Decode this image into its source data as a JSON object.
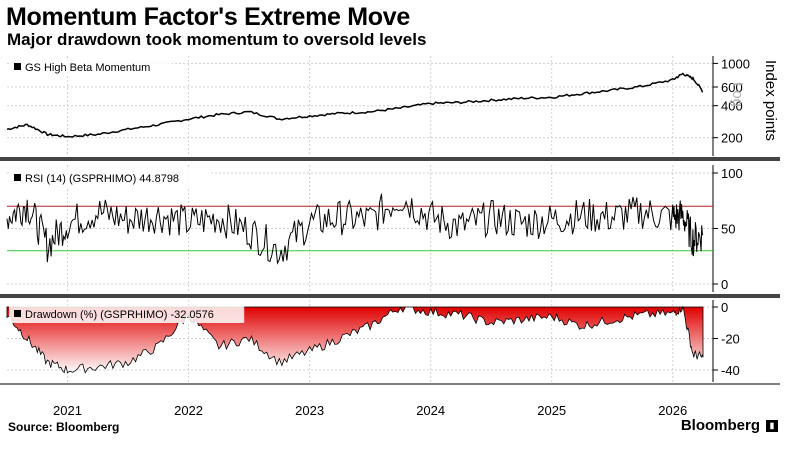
{
  "header": {
    "title": "Momentum Factor's Extreme Move",
    "subtitle": "Major drawdown took momentum to oversold levels"
  },
  "footer": {
    "source": "Source: Bloomberg",
    "brand": "Bloomberg"
  },
  "colors": {
    "price_line": "#000000",
    "rsi_line": "#000000",
    "rsi_upper": "#b22222",
    "rsi_lower": "#33cc33",
    "drawdown_fill": "#e00000",
    "separator": "#444444",
    "grid": "#d0d0d0"
  },
  "chart_data": [
    {
      "type": "line",
      "panel": "price",
      "legend": "GS High Beta Momentum",
      "ylabel": "Index points",
      "scale_badge": "Log",
      "yscale": "log",
      "ylim": [
        150,
        1100
      ],
      "yticks": [
        "1000",
        "600",
        "400",
        "200"
      ],
      "ytick_values": [
        1000,
        600,
        400,
        200
      ],
      "x": [
        "2020-07",
        "2020-09",
        "2020-11",
        "2021-01",
        "2021-04",
        "2021-07",
        "2021-10",
        "2022-01",
        "2022-04",
        "2022-07",
        "2022-10",
        "2023-01",
        "2023-04",
        "2023-07",
        "2023-10",
        "2024-01",
        "2024-04",
        "2024-07",
        "2024-10",
        "2025-01",
        "2025-04",
        "2025-07",
        "2025-10",
        "2026-01",
        "2026-02",
        "2026-03",
        "2026-04"
      ],
      "values": [
        240,
        265,
        215,
        205,
        215,
        240,
        265,
        300,
        330,
        350,
        300,
        320,
        340,
        350,
        380,
        420,
        430,
        450,
        470,
        480,
        520,
        560,
        610,
        700,
        800,
        720,
        540
      ],
      "grid": true
    },
    {
      "type": "line",
      "panel": "rsi",
      "legend": "RSI (14) (GSPRHIMO) 44.8798",
      "ylim": [
        0,
        100
      ],
      "yticks": [
        "100",
        "50",
        "0"
      ],
      "ytick_values": [
        100,
        50,
        0
      ],
      "reference_lines": [
        70,
        30
      ],
      "x": [
        "2020-07",
        "2020-09",
        "2020-11",
        "2021-01",
        "2021-04",
        "2021-07",
        "2021-10",
        "2022-01",
        "2022-04",
        "2022-07",
        "2022-10",
        "2023-01",
        "2023-04",
        "2023-07",
        "2023-10",
        "2024-01",
        "2024-04",
        "2024-07",
        "2024-10",
        "2025-01",
        "2025-04",
        "2025-07",
        "2025-10",
        "2026-01",
        "2026-02",
        "2026-03",
        "2026-04"
      ],
      "values": [
        60,
        72,
        35,
        55,
        65,
        58,
        62,
        55,
        60,
        48,
        30,
        55,
        60,
        58,
        78,
        60,
        52,
        60,
        55,
        58,
        62,
        60,
        65,
        60,
        62,
        40,
        45
      ],
      "grid": true
    },
    {
      "type": "area",
      "panel": "drawdown",
      "legend": "Drawdown (%) (GSPRHIMO) -32.0576",
      "ylim": [
        -45,
        0
      ],
      "yticks": [
        "0",
        "-20",
        "-40"
      ],
      "ytick_values": [
        0,
        -20,
        -40
      ],
      "x": [
        "2020-07",
        "2020-09",
        "2020-11",
        "2021-01",
        "2021-04",
        "2021-07",
        "2021-10",
        "2022-01",
        "2022-04",
        "2022-07",
        "2022-10",
        "2023-01",
        "2023-04",
        "2023-07",
        "2023-10",
        "2024-01",
        "2024-04",
        "2024-07",
        "2024-10",
        "2025-01",
        "2025-04",
        "2025-07",
        "2025-10",
        "2026-01",
        "2026-02",
        "2026-03",
        "2026-04"
      ],
      "values": [
        -5,
        -20,
        -35,
        -40,
        -38,
        -35,
        -25,
        -5,
        -25,
        -20,
        -35,
        -28,
        -20,
        -12,
        0,
        -3,
        -5,
        -10,
        -8,
        -6,
        -12,
        -8,
        -5,
        -4,
        0,
        -30,
        -32
      ],
      "grid": true
    }
  ],
  "x_axis": {
    "labels": [
      "2021",
      "2022",
      "2023",
      "2024",
      "2025",
      "2026"
    ],
    "label_dates": [
      "2021-01",
      "2022-01",
      "2023-01",
      "2024-01",
      "2025-01",
      "2026-01"
    ],
    "range": [
      "2020-07",
      "2026-04"
    ]
  }
}
